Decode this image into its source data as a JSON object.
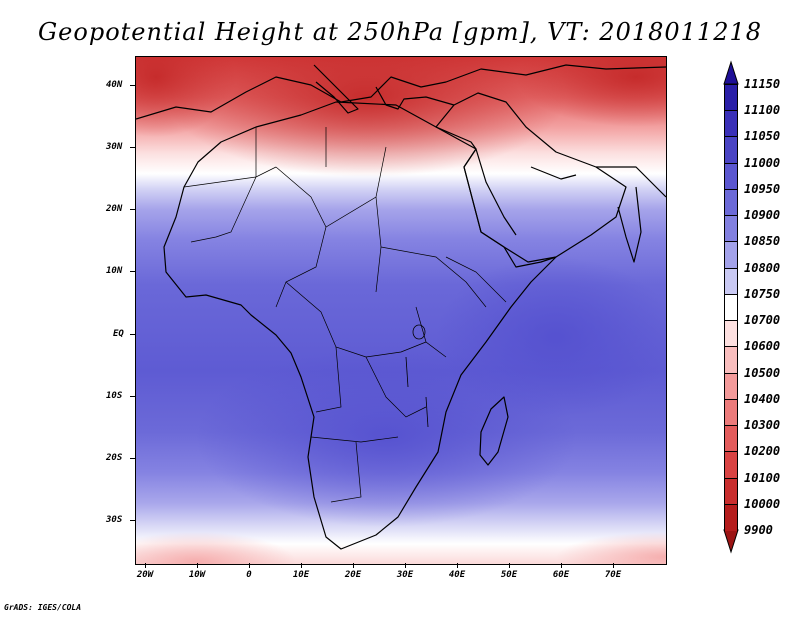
{
  "title": "Geopotential Height at 250hPa [gpm], VT: 2018011218",
  "footer": "GrADS: IGES/COLA",
  "lat_labels": [
    "40N",
    "30N",
    "20N",
    "10N",
    "EQ",
    "10S",
    "20S",
    "30S"
  ],
  "lon_labels": [
    "20W",
    "10W",
    "0",
    "10E",
    "20E",
    "30E",
    "40E",
    "50E",
    "60E",
    "70E"
  ],
  "colorbar": {
    "levels": [
      "11150",
      "11100",
      "11050",
      "11000",
      "10950",
      "10900",
      "10850",
      "10800",
      "10750",
      "10700",
      "10600",
      "10500",
      "10400",
      "10300",
      "10200",
      "10100",
      "10000",
      "9900"
    ],
    "colors": [
      "#1e0f96",
      "#2a1fa8",
      "#3a30b8",
      "#4a44c4",
      "#5b57d0",
      "#6c6ad8",
      "#8280e0",
      "#a3a2ea",
      "#c9c9f3",
      "#ffffff",
      "#fde0e0",
      "#f9bebe",
      "#f39a9a",
      "#ec7b7b",
      "#e35c5c",
      "#d94343",
      "#c92e2e",
      "#b51d1d",
      "#9c1414"
    ]
  }
}
